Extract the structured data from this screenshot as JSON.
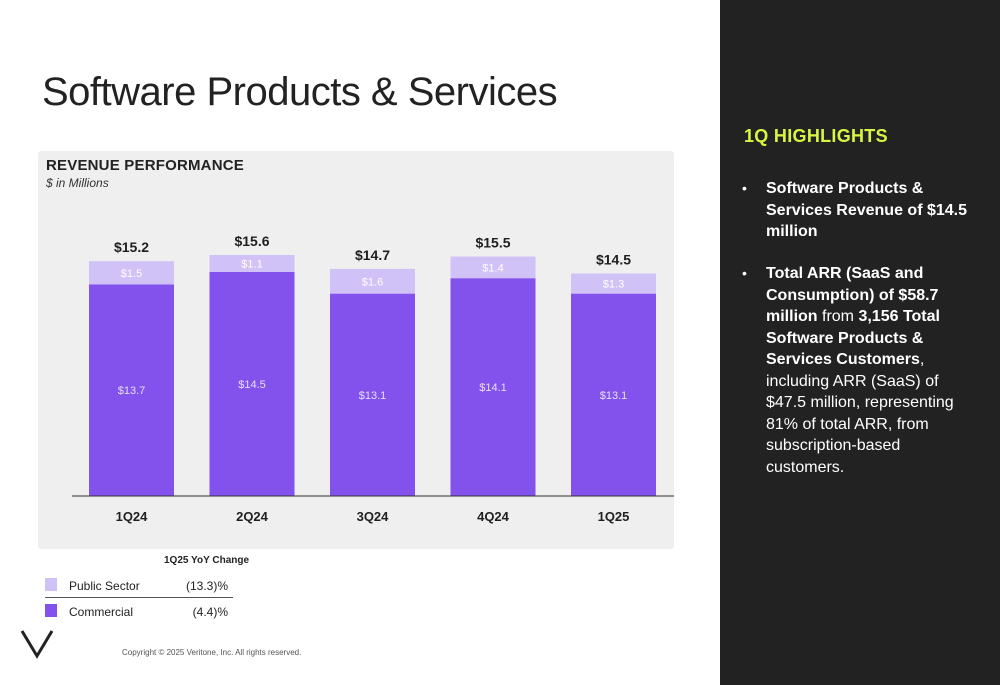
{
  "page": {
    "title": "Software Products & Services",
    "copyright": "Copyright © 2025 Veritone, Inc. All rights reserved."
  },
  "chart_panel": {
    "heading": "REVENUE PERFORMANCE",
    "subheading": "$ in Millions"
  },
  "legend": {
    "title": "1Q25 YoY Change",
    "items": [
      {
        "label": "Public Sector",
        "value": "(13.3)%",
        "color": "#d0c2f7"
      },
      {
        "label": "Commercial",
        "value": "(4.4)%",
        "color": "#8352ec"
      }
    ]
  },
  "highlights": {
    "title": "1Q HIGHLIGHTS",
    "bullet1": {
      "bold": "Software Products & Services Revenue of $14.5 million"
    },
    "bullet2": {
      "bold1": "Total ARR (SaaS and Consumption) of $58.7 million",
      "plain1": " from ",
      "bold2": "3,156 Total Software Products & Services Customers",
      "plain2": ", including ARR (SaaS) of $47.5 million, representing 81% of total ARR, from subscription-based customers."
    }
  },
  "colors": {
    "commercial": "#8352ec",
    "public_sector": "#d0c2f7",
    "side_panel": "#222222",
    "highlight_accent": "#d9f542"
  },
  "chart_data": {
    "type": "bar",
    "stacked": true,
    "title": "REVENUE PERFORMANCE",
    "subtitle": "$ in Millions",
    "categories": [
      "1Q24",
      "2Q24",
      "3Q24",
      "4Q24",
      "1Q25"
    ],
    "series": [
      {
        "name": "Commercial",
        "values": [
          13.7,
          14.5,
          13.1,
          14.1,
          13.1
        ],
        "labels": [
          "$13.7",
          "$14.5",
          "$13.1",
          "$14.1",
          "$13.1"
        ],
        "color": "#8352ec"
      },
      {
        "name": "Public Sector",
        "values": [
          1.5,
          1.1,
          1.6,
          1.4,
          1.3
        ],
        "labels": [
          "$1.5",
          "$1.1",
          "$1.6",
          "$1.4",
          "$1.3"
        ],
        "color": "#d0c2f7"
      }
    ],
    "totals": [
      15.2,
      15.6,
      14.7,
      15.5,
      14.5
    ],
    "total_labels": [
      "$15.2",
      "$15.6",
      "$14.7",
      "$15.5",
      "$14.5"
    ],
    "ylim": [
      0,
      15.6
    ],
    "grid": false,
    "legend_position": "bottom-left"
  }
}
